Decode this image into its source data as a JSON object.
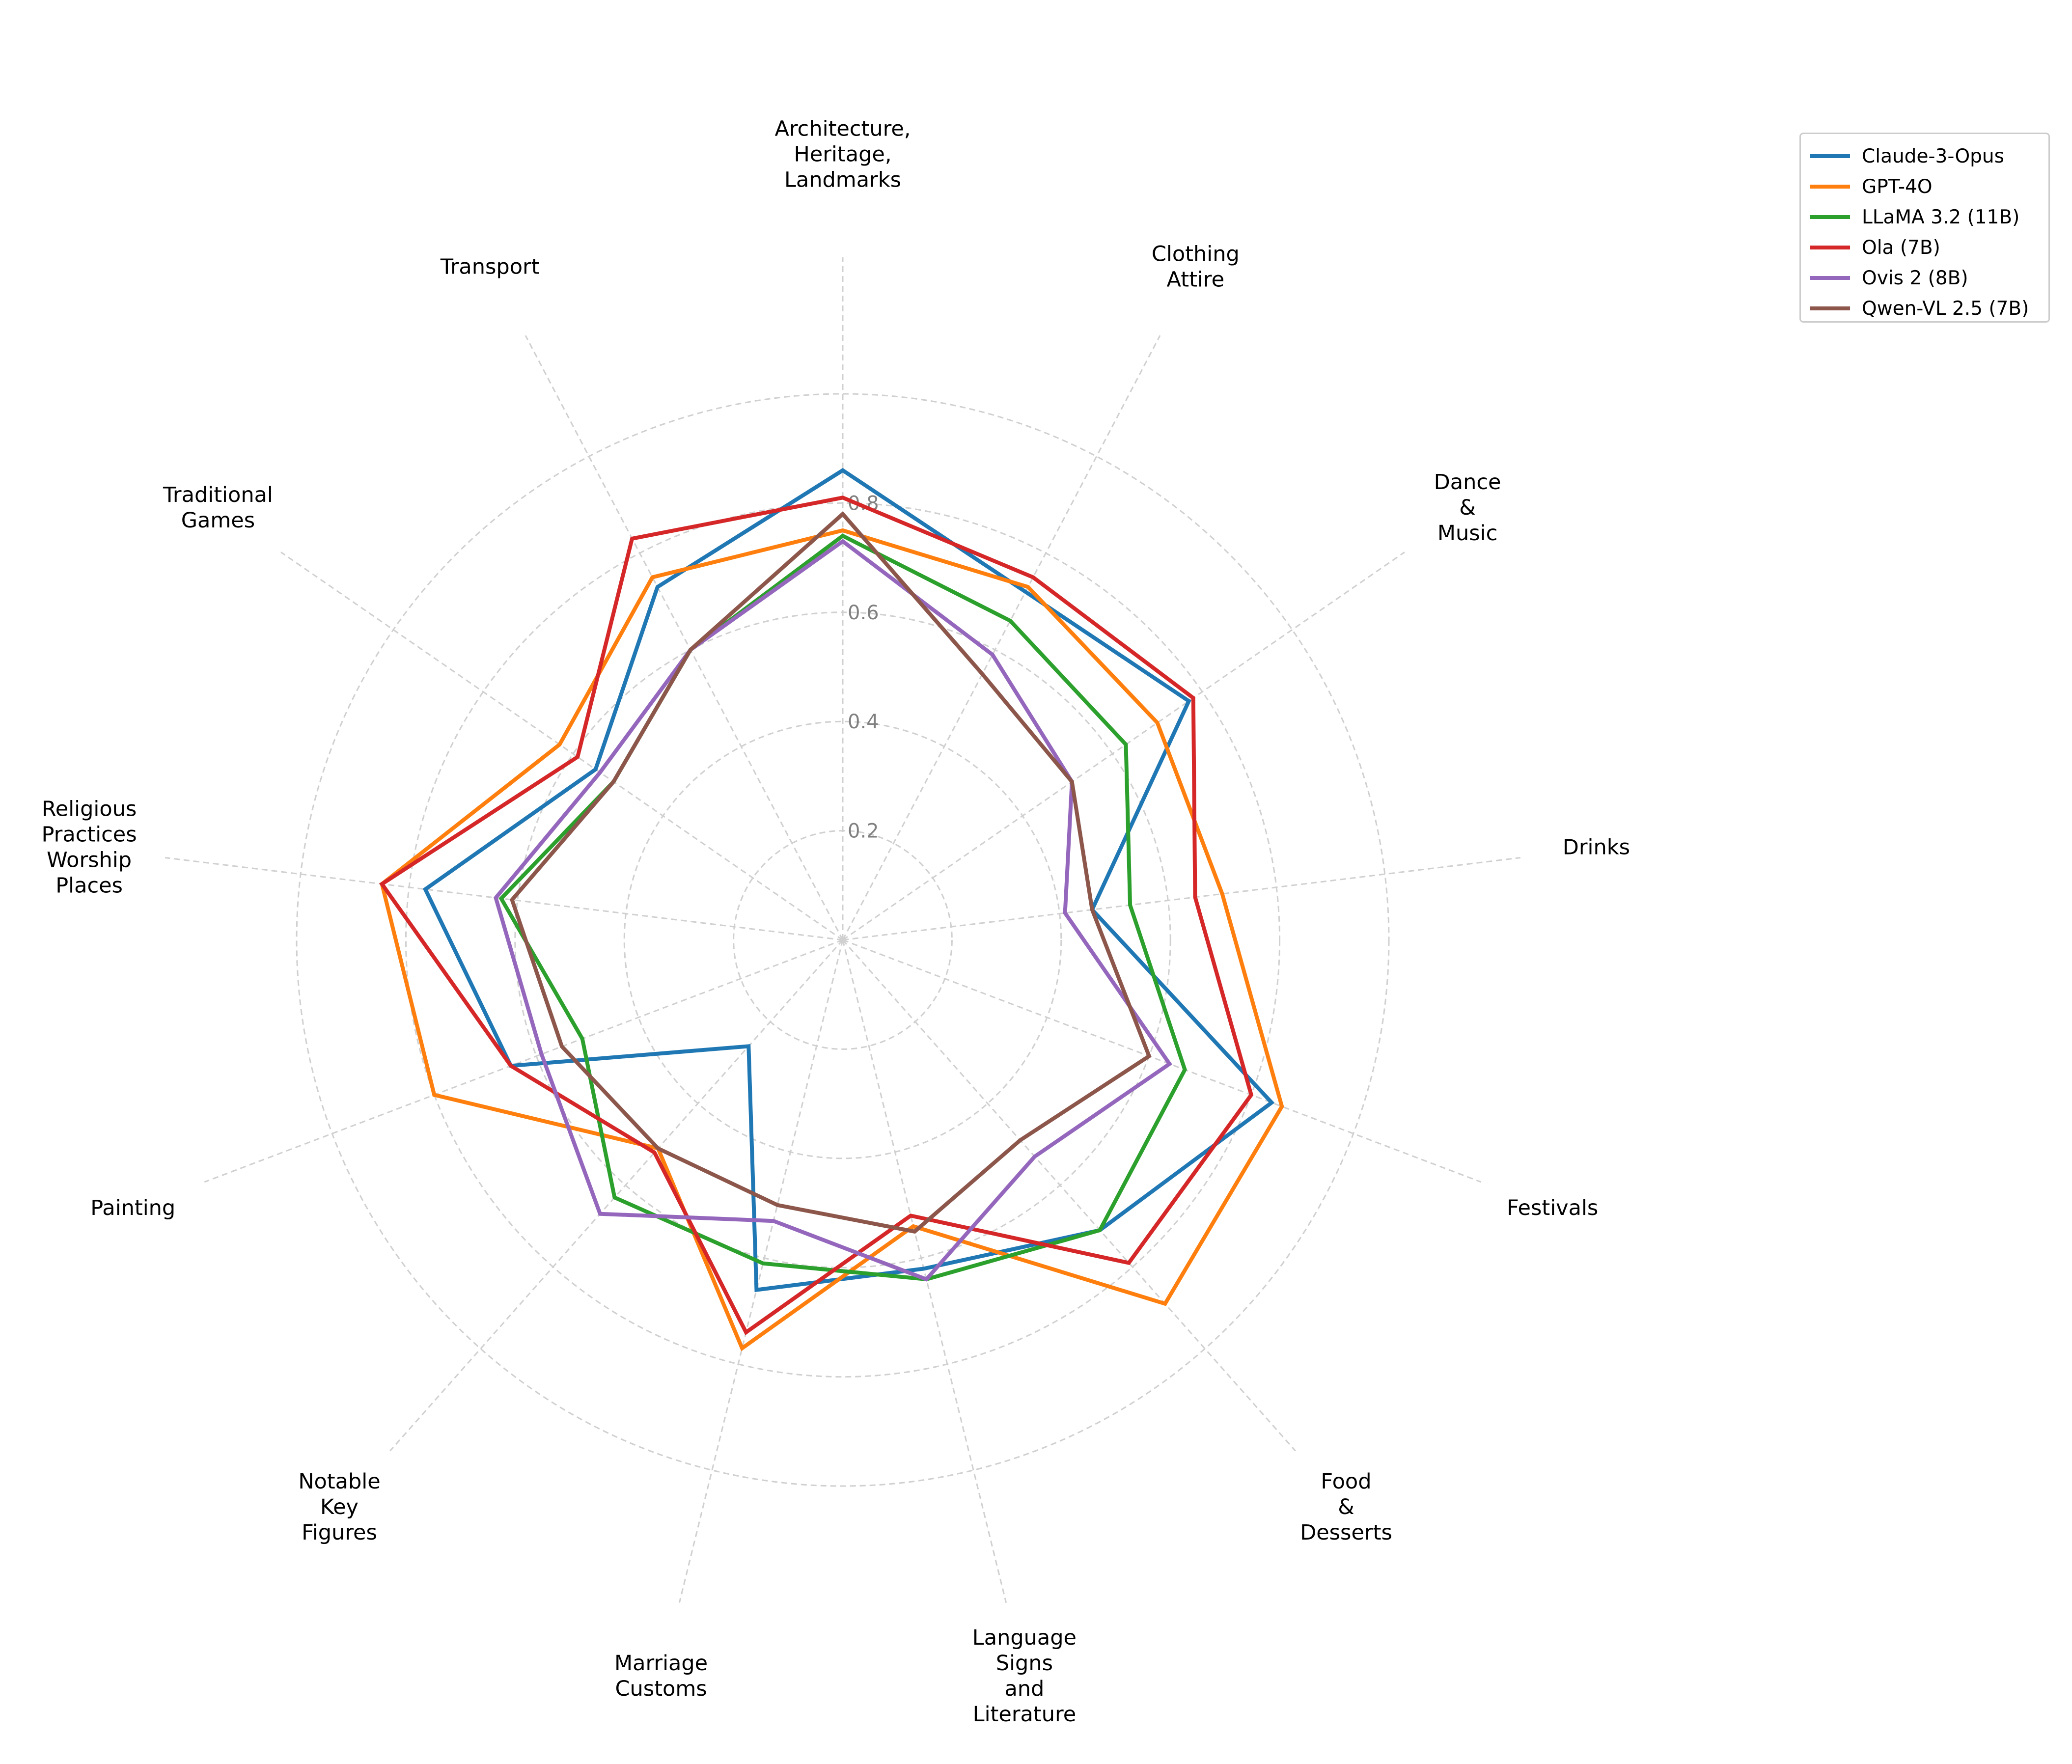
{
  "chart_data": {
    "type": "radar",
    "rmax": 1.0,
    "rticks": [
      0.2,
      0.4,
      0.6,
      0.8
    ],
    "rtick_labels": [
      "0.2",
      "0.4",
      "0.6",
      "0.8"
    ],
    "grid": true,
    "legend_position": "top-right",
    "categories": [
      [
        "Architecture,",
        "",
        "Heritage,",
        "",
        "Landmarks"
      ],
      [
        "Clothing",
        "Attire"
      ],
      [
        "Dance",
        "&",
        "Music"
      ],
      [
        "Drinks"
      ],
      [
        "Festivals"
      ],
      [
        "Food",
        "&",
        "Desserts"
      ],
      [
        "Language",
        "Signs",
        "and",
        "Literature"
      ],
      [
        "Marriage",
        "Customs"
      ],
      [
        "Notable",
        "Key",
        "Figures"
      ],
      [
        "Painting"
      ],
      [
        "Religious",
        "Practices",
        "Worship",
        "Places"
      ],
      [
        "Traditional",
        "Games"
      ],
      [
        "Transport"
      ]
    ],
    "series": [
      {
        "name": "Claude-3-Opus",
        "color": "#1f77b4",
        "values": [
          0.86,
          0.72,
          0.77,
          0.46,
          0.84,
          0.71,
          0.62,
          0.66,
          0.26,
          0.65,
          0.77,
          0.55,
          0.73
        ]
      },
      {
        "name": "GPT-4O",
        "color": "#ff7f0e",
        "values": [
          0.75,
          0.73,
          0.7,
          0.7,
          0.86,
          0.89,
          0.54,
          0.77,
          0.51,
          0.8,
          0.85,
          0.63,
          0.75
        ]
      },
      {
        "name": "LLaMA 3.2 (11B)",
        "color": "#2ca02c",
        "values": [
          0.74,
          0.66,
          0.63,
          0.53,
          0.67,
          0.71,
          0.64,
          0.61,
          0.63,
          0.51,
          0.63,
          0.51,
          0.6
        ]
      },
      {
        "name": "Ola (7B)",
        "color": "#d62728",
        "values": [
          0.81,
          0.75,
          0.78,
          0.65,
          0.8,
          0.79,
          0.52,
          0.74,
          0.52,
          0.65,
          0.85,
          0.59,
          0.83
        ]
      },
      {
        "name": "Ovis 2 (8B)",
        "color": "#9467bd",
        "values": [
          0.73,
          0.59,
          0.51,
          0.41,
          0.64,
          0.53,
          0.64,
          0.53,
          0.67,
          0.59,
          0.64,
          0.54,
          0.6
        ]
      },
      {
        "name": "Qwen-VL 2.5 (7B)",
        "color": "#8c564b",
        "values": [
          0.78,
          0.55,
          0.51,
          0.46,
          0.6,
          0.49,
          0.55,
          0.5,
          0.51,
          0.55,
          0.61,
          0.51,
          0.6
        ]
      }
    ]
  }
}
